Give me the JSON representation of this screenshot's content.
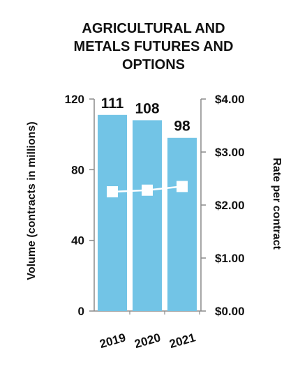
{
  "chart_data": {
    "type": "bar",
    "title_lines": [
      "AGRICULTURAL AND",
      "METALS FUTURES AND",
      "OPTIONS"
    ],
    "categories": [
      "2019",
      "2020",
      "2021"
    ],
    "series": [
      {
        "kind": "bar",
        "axis": "left",
        "values": [
          111,
          108,
          98
        ],
        "data_labels": [
          "111",
          "108",
          "98"
        ],
        "color": "#72c4e6"
      },
      {
        "kind": "line",
        "axis": "right",
        "values": [
          2.25,
          2.28,
          2.35
        ],
        "color": "#ffffff"
      }
    ],
    "y_left": {
      "label": "Volume (contracts in millions)",
      "range": [
        0,
        120
      ],
      "ticks": [
        0,
        40,
        80,
        120
      ],
      "tick_labels": [
        "0",
        "40",
        "80",
        "120"
      ]
    },
    "y_right": {
      "label": "Rate per contract",
      "range": [
        0,
        4
      ],
      "ticks": [
        0,
        1,
        2,
        3,
        4
      ],
      "tick_labels": [
        "$0.00",
        "$1.00",
        "$2.00",
        "$3.00",
        "$4.00"
      ]
    },
    "grid": false,
    "legend": "none"
  },
  "colors": {
    "bar": "#72c4e6",
    "axis": "#8a8a8a",
    "text": "#111111",
    "line_marker": "#ffffff"
  }
}
